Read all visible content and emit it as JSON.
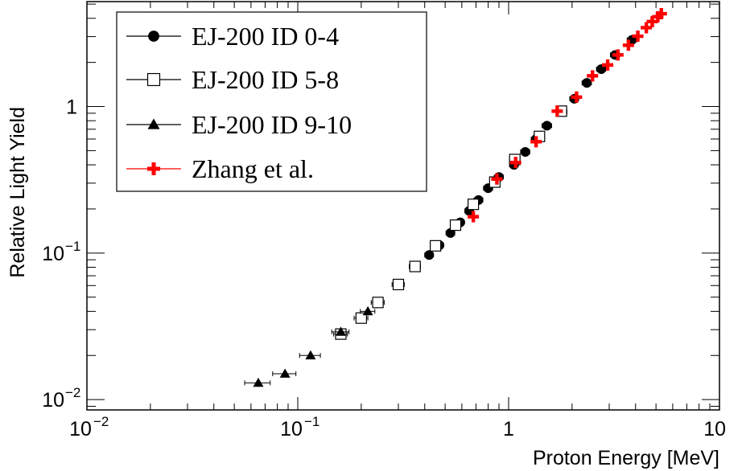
{
  "chart_data": {
    "type": "scatter",
    "xlabel": "Proton Energy [MeV]",
    "ylabel": "Relative Light Yield",
    "xscale": "log",
    "yscale": "log",
    "xlim": [
      0.01,
      10
    ],
    "ylim": [
      0.0085,
      5.2
    ],
    "x_ticks": [
      {
        "base": "10",
        "exp": "−2"
      },
      {
        "base": "10",
        "exp": "−1"
      },
      {
        "base": "1",
        "exp": ""
      },
      {
        "base": "10",
        "exp": ""
      }
    ],
    "y_ticks": [
      {
        "base": "10",
        "exp": "−2"
      },
      {
        "base": "10",
        "exp": "−1"
      },
      {
        "base": "1",
        "exp": ""
      }
    ],
    "grid": false,
    "legend_position": "top-left",
    "series": [
      {
        "name": "EJ-200 ID 0-4",
        "marker": "filled-circle",
        "color": "#000000",
        "points": [
          {
            "x": 0.42,
            "y": 0.097,
            "xerr": 0.02
          },
          {
            "x": 0.47,
            "y": 0.113,
            "xerr": 0.02
          },
          {
            "x": 0.53,
            "y": 0.137,
            "xerr": 0.025
          },
          {
            "x": 0.59,
            "y": 0.162,
            "xerr": 0.025
          },
          {
            "x": 0.65,
            "y": 0.194,
            "xerr": 0.03
          },
          {
            "x": 0.72,
            "y": 0.23,
            "xerr": 0.035
          },
          {
            "x": 0.8,
            "y": 0.277,
            "xerr": 0.04
          },
          {
            "x": 0.9,
            "y": 0.33,
            "xerr": 0.045
          },
          {
            "x": 1.06,
            "y": 0.4,
            "xerr": 0.05
          },
          {
            "x": 1.2,
            "y": 0.49,
            "xerr": 0.06
          },
          {
            "x": 1.35,
            "y": 0.6,
            "xerr": 0.07
          },
          {
            "x": 1.52,
            "y": 0.74,
            "xerr": 0.08
          },
          {
            "x": 1.8,
            "y": 0.92,
            "xerr": 0.09
          },
          {
            "x": 2.05,
            "y": 1.13,
            "xerr": 0.1
          },
          {
            "x": 2.35,
            "y": 1.45,
            "xerr": 0.12
          },
          {
            "x": 2.75,
            "y": 1.8,
            "xerr": 0.14
          },
          {
            "x": 3.2,
            "y": 2.25,
            "xerr": 0.16
          },
          {
            "x": 3.85,
            "y": 2.85,
            "xerr": 0.2
          }
        ]
      },
      {
        "name": "EJ-200 ID 5-8",
        "marker": "open-square",
        "color": "#000000",
        "points": [
          {
            "x": 0.16,
            "y": 0.028,
            "xerr": 0.012
          },
          {
            "x": 0.2,
            "y": 0.036,
            "xerr": 0.015
          },
          {
            "x": 0.24,
            "y": 0.046,
            "xerr": 0.017
          },
          {
            "x": 0.3,
            "y": 0.061,
            "xerr": 0.02
          },
          {
            "x": 0.36,
            "y": 0.081,
            "xerr": 0.022
          },
          {
            "x": 0.45,
            "y": 0.112,
            "xerr": 0.025
          },
          {
            "x": 0.56,
            "y": 0.155,
            "xerr": 0.03
          },
          {
            "x": 0.68,
            "y": 0.215,
            "xerr": 0.035
          },
          {
            "x": 0.86,
            "y": 0.305,
            "xerr": 0.045
          },
          {
            "x": 1.07,
            "y": 0.435,
            "xerr": 0.06
          },
          {
            "x": 1.4,
            "y": 0.625,
            "xerr": 0.08
          },
          {
            "x": 1.78,
            "y": 0.93,
            "xerr": 0.1
          }
        ]
      },
      {
        "name": "EJ-200 ID 9-10",
        "marker": "filled-triangle",
        "color": "#000000",
        "points": [
          {
            "x": 0.065,
            "y": 0.013,
            "xerr": 0.009
          },
          {
            "x": 0.087,
            "y": 0.015,
            "xerr": 0.011
          },
          {
            "x": 0.115,
            "y": 0.02,
            "xerr": 0.013
          },
          {
            "x": 0.16,
            "y": 0.029,
            "xerr": 0.015
          },
          {
            "x": 0.215,
            "y": 0.04,
            "xerr": 0.017
          }
        ]
      },
      {
        "name": "Zhang et al.",
        "marker": "red-cross",
        "color": "#ff0000",
        "points": [
          {
            "x": 0.68,
            "y": 0.177
          },
          {
            "x": 0.88,
            "y": 0.32
          },
          {
            "x": 1.08,
            "y": 0.415
          },
          {
            "x": 1.35,
            "y": 0.575
          },
          {
            "x": 1.7,
            "y": 0.93
          },
          {
            "x": 2.1,
            "y": 1.16
          },
          {
            "x": 2.5,
            "y": 1.62
          },
          {
            "x": 2.95,
            "y": 1.92
          },
          {
            "x": 3.3,
            "y": 2.25
          },
          {
            "x": 3.7,
            "y": 2.62
          },
          {
            "x": 4.1,
            "y": 3.02
          },
          {
            "x": 4.5,
            "y": 3.45
          },
          {
            "x": 4.8,
            "y": 3.8
          },
          {
            "x": 5.1,
            "y": 4.1
          },
          {
            "x": 5.3,
            "y": 4.3
          }
        ]
      }
    ]
  }
}
